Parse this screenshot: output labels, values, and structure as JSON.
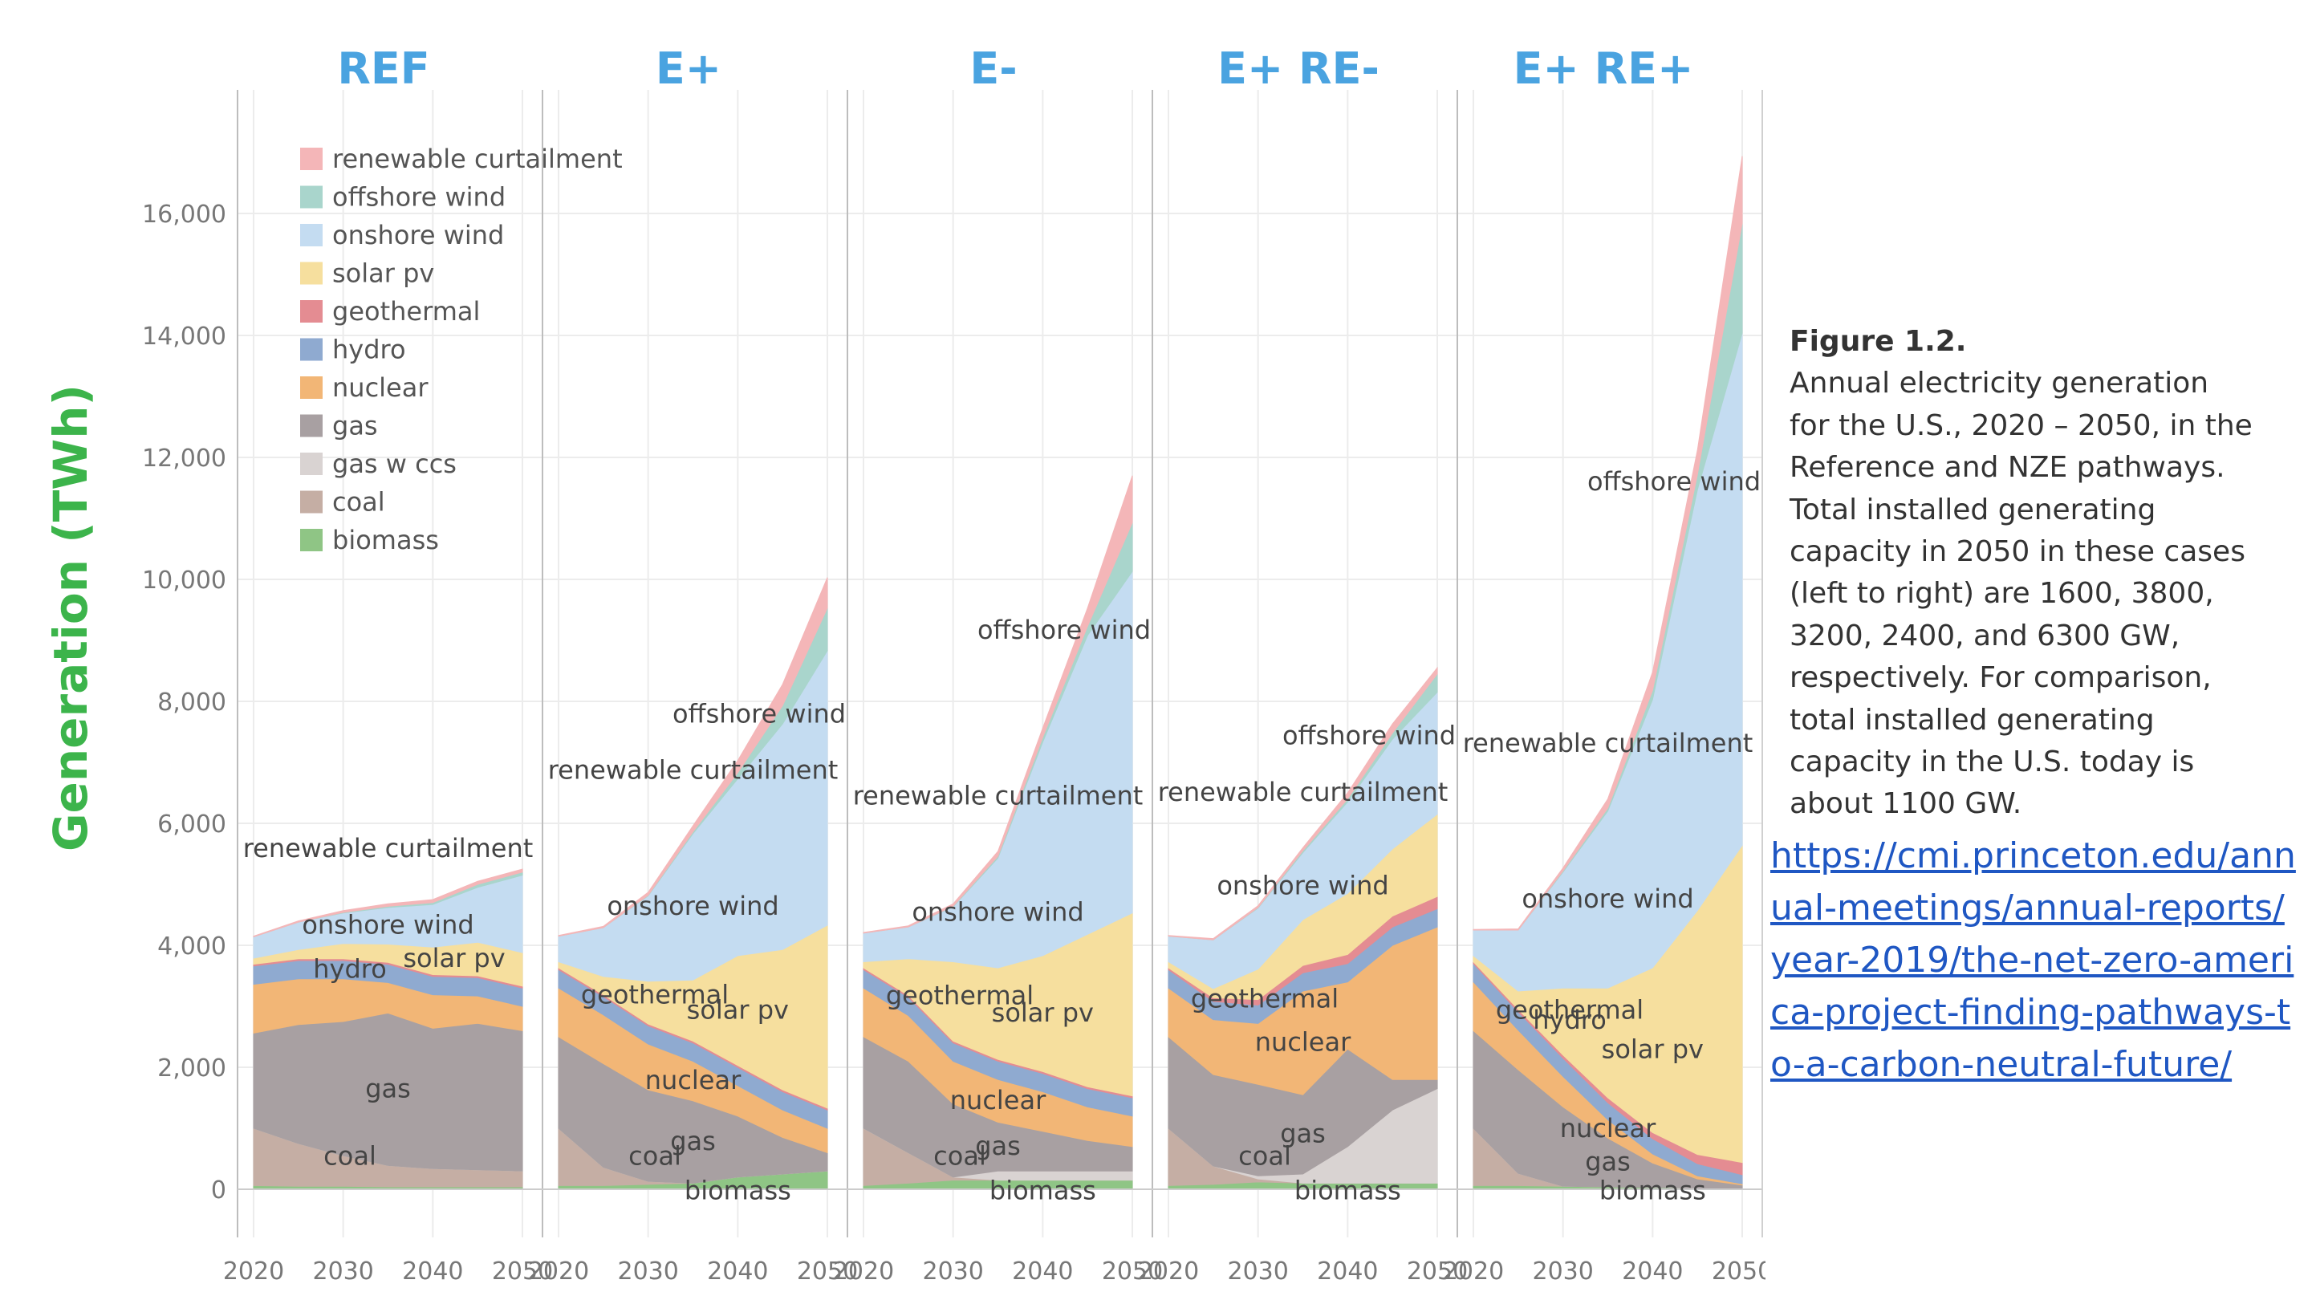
{
  "chart_data": {
    "type": "area",
    "ylabel": "Generation (TWh)",
    "ylim": [
      0,
      17000
    ],
    "y_ticks": [
      0,
      2000,
      4000,
      6000,
      8000,
      10000,
      12000,
      14000,
      16000
    ],
    "y_tick_labels": [
      "0",
      "2,000",
      "4,000",
      "6,000",
      "8,000",
      "10,000",
      "12,000",
      "14,000",
      "16,000"
    ],
    "x_tick_labels": [
      "2020",
      "2030",
      "2040",
      "2050"
    ],
    "x": [
      2020,
      2025,
      2030,
      2035,
      2040,
      2045,
      2050
    ],
    "grid": true,
    "legend_position": "top-left",
    "legend": [
      {
        "label": "renewable curtailment",
        "color": "#f4b6b8"
      },
      {
        "label": "offshore wind",
        "color": "#a9d5cc"
      },
      {
        "label": "onshore wind",
        "color": "#c4dcf1"
      },
      {
        "label": "solar pv",
        "color": "#f6df9e"
      },
      {
        "label": "geothermal",
        "color": "#e48c92"
      },
      {
        "label": "hydro",
        "color": "#8faad0"
      },
      {
        "label": "nuclear",
        "color": "#f2b676"
      },
      {
        "label": "gas",
        "color": "#a8a0a2"
      },
      {
        "label": "gas w ccs",
        "color": "#d9d3d2"
      },
      {
        "label": "coal",
        "color": "#c5aea4"
      },
      {
        "label": "biomass",
        "color": "#8fc585"
      }
    ],
    "stack_order": [
      "biomass",
      "coal",
      "gas w ccs",
      "gas",
      "nuclear",
      "hydro",
      "geothermal",
      "solar pv",
      "onshore wind",
      "offshore wind",
      "renewable curtailment"
    ],
    "panels": [
      {
        "title": "REF",
        "series": [
          {
            "name": "biomass",
            "values": [
              60,
              50,
              50,
              40,
              40,
              40,
              40
            ]
          },
          {
            "name": "coal",
            "values": [
              940,
              700,
              500,
              350,
              300,
              280,
              260
            ]
          },
          {
            "name": "gas w ccs",
            "values": [
              0,
              0,
              0,
              0,
              0,
              0,
              0
            ]
          },
          {
            "name": "gas",
            "values": [
              1560,
              1950,
              2200,
              2500,
              2300,
              2400,
              2300
            ]
          },
          {
            "name": "nuclear",
            "values": [
              800,
              750,
              700,
              500,
              550,
              450,
              400
            ]
          },
          {
            "name": "hydro",
            "values": [
              300,
              300,
              300,
              300,
              300,
              300,
              300
            ]
          },
          {
            "name": "geothermal",
            "values": [
              30,
              30,
              30,
              30,
              30,
              30,
              30
            ]
          },
          {
            "name": "solar pv",
            "values": [
              100,
              150,
              250,
              300,
              450,
              550,
              550
            ]
          },
          {
            "name": "onshore wind",
            "values": [
              350,
              450,
              500,
              600,
              700,
              900,
              1270
            ]
          },
          {
            "name": "offshore wind",
            "values": [
              0,
              0,
              10,
              20,
              30,
              50,
              50
            ]
          },
          {
            "name": "renewable curtailment",
            "values": [
              10,
              20,
              30,
              40,
              50,
              50,
              50
            ]
          }
        ],
        "annotations": [
          "renewable curtailment",
          "onshore wind",
          "hydro",
          "solar pv",
          "gas",
          "coal"
        ]
      },
      {
        "title": "E+",
        "series": [
          {
            "name": "biomass",
            "values": [
              60,
              60,
              80,
              100,
              200,
              250,
              300
            ]
          },
          {
            "name": "coal",
            "values": [
              940,
              300,
              50,
              0,
              0,
              0,
              0
            ]
          },
          {
            "name": "gas w ccs",
            "values": [
              0,
              0,
              0,
              0,
              0,
              0,
              0
            ]
          },
          {
            "name": "gas",
            "values": [
              1500,
              1700,
              1500,
              1350,
              1000,
              600,
              300
            ]
          },
          {
            "name": "nuclear",
            "values": [
              800,
              800,
              750,
              650,
              500,
              450,
              400
            ]
          },
          {
            "name": "hydro",
            "values": [
              300,
              300,
              300,
              300,
              300,
              300,
              300
            ]
          },
          {
            "name": "geothermal",
            "values": [
              30,
              30,
              30,
              30,
              30,
              30,
              30
            ]
          },
          {
            "name": "solar pv",
            "values": [
              100,
              300,
              700,
              1000,
              1800,
              2300,
              3000
            ]
          },
          {
            "name": "onshore wind",
            "values": [
              420,
              800,
              1400,
              2400,
              2900,
              3700,
              4500
            ]
          },
          {
            "name": "offshore wind",
            "values": [
              0,
              0,
              10,
              30,
              100,
              300,
              700
            ]
          },
          {
            "name": "renewable curtailment",
            "values": [
              10,
              20,
              50,
              100,
              200,
              350,
              500
            ]
          }
        ],
        "annotations": [
          "renewable curtailment",
          "offshore wind",
          "onshore wind",
          "geothermal",
          "solar pv",
          "nuclear",
          "gas",
          "coal",
          "biomass"
        ]
      },
      {
        "title": "E-",
        "series": [
          {
            "name": "biomass",
            "values": [
              60,
              100,
              150,
              150,
              150,
              150,
              150
            ]
          },
          {
            "name": "coal",
            "values": [
              940,
              500,
              50,
              0,
              0,
              0,
              0
            ]
          },
          {
            "name": "gas w ccs",
            "values": [
              0,
              0,
              0,
              150,
              150,
              150,
              150
            ]
          },
          {
            "name": "gas",
            "values": [
              1500,
              1500,
              1200,
              800,
              650,
              500,
              400
            ]
          },
          {
            "name": "nuclear",
            "values": [
              800,
              750,
              700,
              700,
              650,
              550,
              500
            ]
          },
          {
            "name": "hydro",
            "values": [
              300,
              300,
              300,
              300,
              300,
              300,
              300
            ]
          },
          {
            "name": "geothermal",
            "values": [
              30,
              30,
              30,
              30,
              30,
              30,
              30
            ]
          },
          {
            "name": "solar pv",
            "values": [
              100,
              600,
              1300,
              1500,
              1900,
              2500,
              3000
            ]
          },
          {
            "name": "onshore wind",
            "values": [
              470,
              520,
              900,
              1800,
              3500,
              4900,
              5600
            ]
          },
          {
            "name": "offshore wind",
            "values": [
              0,
              0,
              10,
              30,
              80,
              150,
              800
            ]
          },
          {
            "name": "renewable curtailment",
            "values": [
              10,
              20,
              40,
              80,
              150,
              300,
              770
            ]
          }
        ],
        "annotations": [
          "renewable curtailment",
          "offshore wind",
          "onshore wind",
          "geothermal",
          "solar pv",
          "nuclear",
          "gas",
          "coal",
          "biomass"
        ]
      },
      {
        "title": "E+ RE-",
        "series": [
          {
            "name": "biomass",
            "values": [
              60,
              80,
              120,
              100,
              100,
              100,
              100
            ]
          },
          {
            "name": "coal",
            "values": [
              940,
              300,
              50,
              0,
              0,
              0,
              0
            ]
          },
          {
            "name": "gas w ccs",
            "values": [
              0,
              0,
              50,
              150,
              600,
              1200,
              1550
            ]
          },
          {
            "name": "gas",
            "values": [
              1500,
              1500,
              1500,
              1300,
              1600,
              500,
              150
            ]
          },
          {
            "name": "nuclear",
            "values": [
              800,
              900,
              1000,
              1700,
              1100,
              2200,
              2500
            ]
          },
          {
            "name": "hydro",
            "values": [
              300,
              300,
              300,
              300,
              300,
              300,
              300
            ]
          },
          {
            "name": "geothermal",
            "values": [
              30,
              60,
              90,
              120,
              150,
              180,
              200
            ]
          },
          {
            "name": "solar pv",
            "values": [
              100,
              150,
              500,
              750,
              1000,
              1100,
              1350
            ]
          },
          {
            "name": "onshore wind",
            "values": [
              420,
              800,
              1000,
              1100,
              1500,
              1800,
              2000
            ]
          },
          {
            "name": "offshore wind",
            "values": [
              0,
              0,
              10,
              30,
              50,
              100,
              300
            ]
          },
          {
            "name": "renewable curtailment",
            "values": [
              10,
              20,
              30,
              50,
              100,
              150,
              100
            ]
          }
        ],
        "annotations": [
          "offshore wind",
          "renewable curtailment",
          "onshore wind",
          "geothermal",
          "nuclear",
          "gas",
          "coal",
          "biomass"
        ]
      },
      {
        "title": "E+ RE+",
        "series": [
          {
            "name": "biomass",
            "values": [
              60,
              60,
              50,
              40,
              30,
              20,
              20
            ]
          },
          {
            "name": "coal",
            "values": [
              940,
              200,
              0,
              0,
              0,
              0,
              0
            ]
          },
          {
            "name": "gas w ccs",
            "values": [
              0,
              0,
              0,
              0,
              0,
              0,
              0
            ]
          },
          {
            "name": "gas",
            "values": [
              1600,
              1700,
              1300,
              800,
              400,
              150,
              50
            ]
          },
          {
            "name": "nuclear",
            "values": [
              800,
              650,
              500,
              300,
              150,
              50,
              20
            ]
          },
          {
            "name": "hydro",
            "values": [
              300,
              300,
              300,
              280,
              250,
              200,
              150
            ]
          },
          {
            "name": "geothermal",
            "values": [
              30,
              40,
              50,
              80,
              100,
              150,
              200
            ]
          },
          {
            "name": "solar pv",
            "values": [
              100,
              300,
              1100,
              1800,
              2700,
              4000,
              5200
            ]
          },
          {
            "name": "onshore wind",
            "values": [
              420,
              1000,
              1900,
              2900,
              4400,
              6900,
              8400
            ]
          },
          {
            "name": "offshore wind",
            "values": [
              0,
              0,
              20,
              50,
              150,
              250,
              1800
            ]
          },
          {
            "name": "renewable curtailment",
            "values": [
              10,
              20,
              50,
              150,
              300,
              400,
              1100
            ]
          }
        ],
        "annotations": [
          "renewable curtailment",
          "offshore wind",
          "onshore wind",
          "hydro",
          "solar pv",
          "nuclear",
          "gas",
          "geothermal",
          "biomass"
        ]
      }
    ]
  },
  "caption": {
    "figure": "Figure 1.2.",
    "text": "Annual electricity generation\nfor the U.S., 2020 – 2050, in the\nReference and NZE pathways.\nTotal installed generating\ncapacity in 2050 in these cases\n(left to right) are 1600, 3800,\n3200, 2400, and 6300 GW,\nrespectively. For comparison,\ntotal installed generating\ncapacity in the U.S. today is\nabout 1100 GW."
  },
  "link": {
    "text": "https://cmi.princeton.edu/annual-meetings/annual-reports/year-2019/the-net-zero-america-project-finding-pathways-to-a-carbon-neutral-future/"
  },
  "colors": {
    "title": "#4aa3e0",
    "ylabel": "#3cb44b",
    "text": "#333333",
    "axis": "#888888",
    "grid": "#ececec",
    "link": "#1f57c3"
  }
}
